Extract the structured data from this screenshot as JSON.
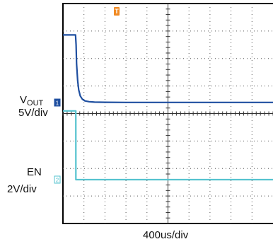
{
  "chart_data": {
    "type": "line",
    "title": "",
    "grid": true,
    "divisions": {
      "x": 10,
      "y": 8
    },
    "trigger_marker": "T",
    "x": {
      "label": "400us/div",
      "unit": "us",
      "per_div": 400,
      "range": [
        0,
        4000
      ]
    },
    "series": [
      {
        "name": "VOUT",
        "label_main": "V",
        "label_sub": "OUT",
        "scale": "5V/div",
        "color": "#1f4fa0",
        "channel": "1",
        "x": [
          0,
          240,
          250,
          260,
          280,
          300,
          330,
          370,
          420,
          500,
          600,
          800,
          1200,
          2000,
          3000,
          4000
        ],
        "y": [
          12.3,
          12.3,
          10.5,
          7.0,
          4.0,
          2.3,
          1.2,
          0.6,
          0.3,
          0.15,
          0.08,
          0.05,
          0.03,
          0.02,
          0.02,
          0.02
        ]
      },
      {
        "name": "EN",
        "label_main": "EN",
        "scale": "2V/div",
        "color": "#56c3cf",
        "channel": "2",
        "x": [
          0,
          245,
          246,
          4000
        ],
        "y": [
          5.0,
          5.0,
          0.0,
          0.0
        ]
      }
    ]
  }
}
